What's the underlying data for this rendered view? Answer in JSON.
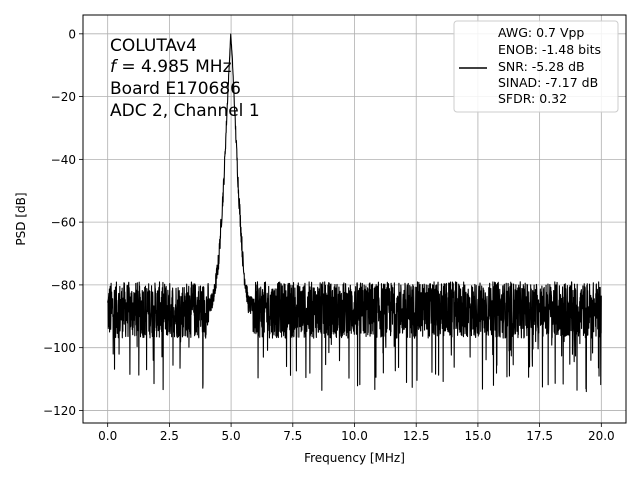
{
  "chart_data": {
    "type": "line",
    "xlabel": "Frequency [MHz]",
    "ylabel": "PSD [dB]",
    "xlim": [
      -1,
      21
    ],
    "ylim": [
      -124,
      6
    ],
    "x_ticks": [
      0,
      2.5,
      5,
      7.5,
      10,
      12.5,
      15,
      17.5,
      20
    ],
    "x_tick_labels": [
      "0.0",
      "2.5",
      "5.0",
      "7.5",
      "10.0",
      "12.5",
      "15.0",
      "17.5",
      "20.0"
    ],
    "y_ticks": [
      0,
      -20,
      -40,
      -60,
      -80,
      -100,
      -120
    ],
    "y_tick_labels": [
      "0",
      "−20",
      "−40",
      "−60",
      "−80",
      "−100",
      "−120"
    ],
    "grid": true,
    "legend_position": "top-right",
    "annotation": {
      "line1": "COLUTAv4",
      "line2_var": "f",
      "line2_rest": " = 4.985 MHz",
      "line3": "Board E170686",
      "line4": "ADC 2, Channel 1"
    },
    "legend": {
      "lines": [
        "AWG: 0.7 Vpp",
        "ENOB: -1.48 bits",
        "SNR: -5.28 dB",
        "SINAD: -7.17 dB",
        "SFDR: 0.32"
      ]
    },
    "series": [
      {
        "color": "#000000",
        "peak": {
          "x": 4.985,
          "y": 0
        },
        "noise_floor_db": -88,
        "x": [
          0.0,
          0.1,
          0.5,
          1.0,
          1.5,
          2.0,
          2.5,
          3.0,
          3.5,
          4.0,
          4.3,
          4.5,
          4.7,
          4.85,
          4.95,
          4.985,
          5.05,
          5.15,
          5.3,
          5.5,
          5.7,
          6.0,
          7.0,
          8.0,
          9.0,
          10.0,
          11.0,
          11.2,
          12.0,
          12.5,
          13.0,
          14.0,
          15.0,
          16.0,
          17.0,
          18.0,
          19.0,
          19.4,
          20.0
        ],
        "y": [
          -74,
          -87,
          -89,
          -88,
          -88,
          -88,
          -89,
          -88,
          -89,
          -88,
          -84,
          -72,
          -48,
          -22,
          -6,
          0,
          -8,
          -25,
          -50,
          -75,
          -86,
          -88,
          -88,
          -88,
          -88,
          -88,
          -88,
          -117,
          -88,
          -88,
          -88,
          -88,
          -88,
          -88,
          -88,
          -88,
          -88,
          -114,
          -88
        ]
      }
    ]
  }
}
